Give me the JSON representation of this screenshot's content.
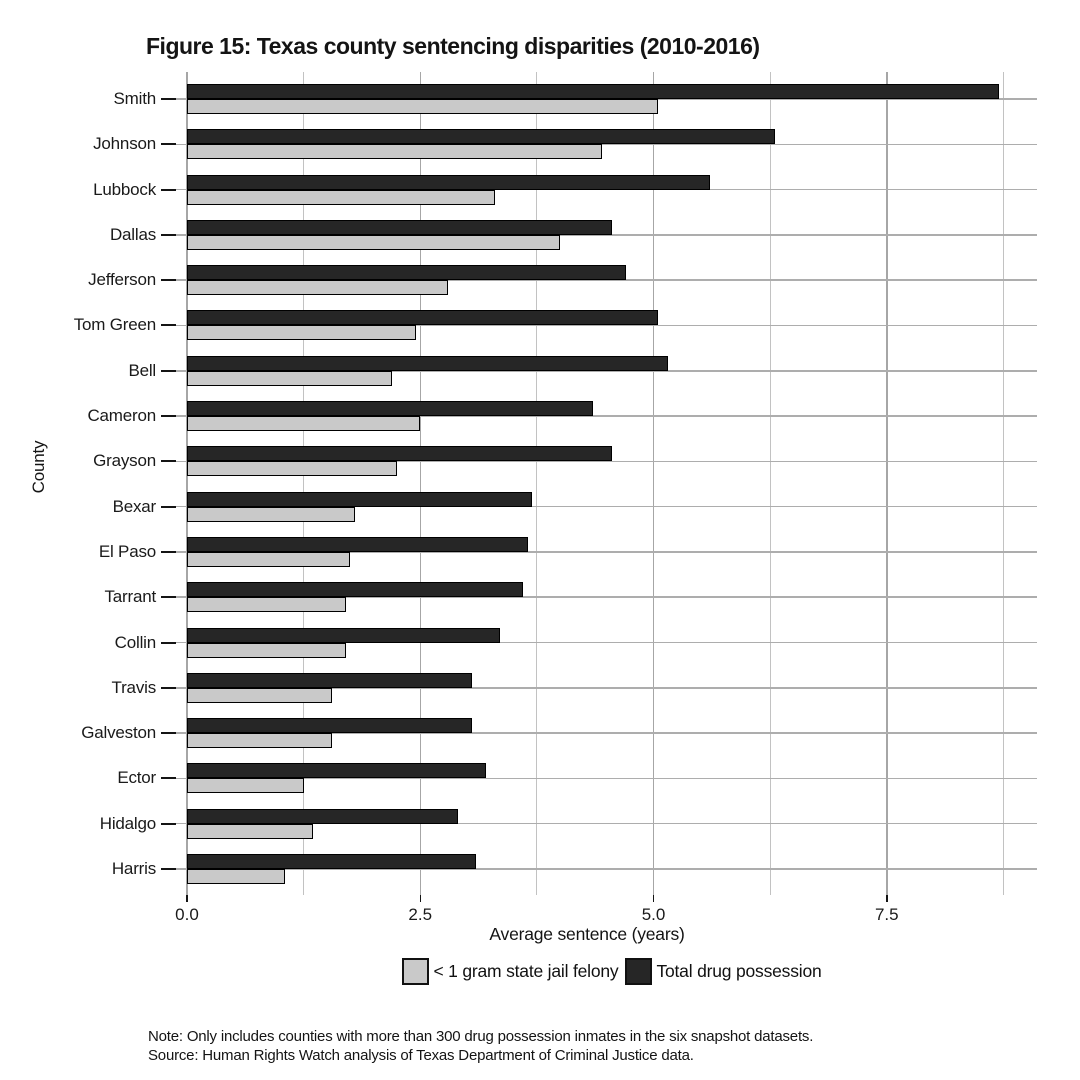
{
  "figure": {
    "notes": [
      "Note: Only includes counties with more than 300 drug possession inmates in the six snapshot datasets.",
      "Source: Human Rights Watch analysis of Texas Department of Criminal Justice data."
    ]
  },
  "chart_data": {
    "type": "bar",
    "orientation": "horizontal",
    "title": "Figure 15: Texas county sentencing disparities (2010-2016)",
    "xlabel": "Average sentence (years)",
    "ylabel": "County",
    "categories": [
      "Smith",
      "Johnson",
      "Lubbock",
      "Dallas",
      "Jefferson",
      "Tom Green",
      "Bell",
      "Cameron",
      "Grayson",
      "Bexar",
      "El Paso",
      "Tarrant",
      "Collin",
      "Travis",
      "Galveston",
      "Ector",
      "Hidalgo",
      "Harris"
    ],
    "series": [
      {
        "name": "< 1 gram state jail felony",
        "color": "#c9c9c9",
        "border": "#000000",
        "values": [
          5.05,
          4.45,
          3.3,
          4.0,
          2.8,
          2.45,
          2.2,
          2.5,
          2.25,
          1.8,
          1.75,
          1.7,
          1.7,
          1.55,
          1.55,
          1.25,
          1.35,
          1.05
        ]
      },
      {
        "name": "Total drug possession",
        "color": "#262626",
        "border": "#000000",
        "values": [
          8.7,
          6.3,
          5.6,
          4.55,
          4.7,
          5.05,
          5.15,
          4.35,
          4.55,
          3.7,
          3.65,
          3.6,
          3.35,
          3.05,
          3.05,
          3.2,
          2.9,
          3.1
        ]
      }
    ],
    "xlim": [
      0,
      9.11
    ],
    "x_major_ticks": [
      0,
      2.5,
      5,
      7.5
    ],
    "x_tick_labels": [
      "0.0",
      "2.5",
      "5.0",
      "7.5"
    ],
    "x_minor_gridlines": [
      1.25,
      3.75,
      6.25,
      8.75
    ],
    "grid": true,
    "legend_position": "bottom"
  }
}
